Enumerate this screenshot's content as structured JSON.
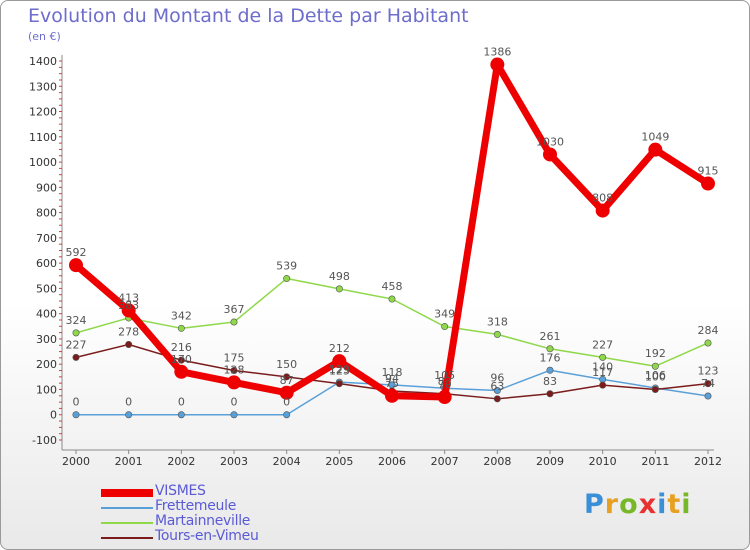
{
  "chart_data": {
    "type": "line",
    "title": "Evolution du Montant de la Dette par Habitant",
    "subtitle": "(en €)",
    "categories": [
      "2000",
      "2001",
      "2002",
      "2003",
      "2004",
      "2005",
      "2006",
      "2007",
      "2008",
      "2009",
      "2010",
      "2011",
      "2012"
    ],
    "ylim": [
      -100,
      1400
    ],
    "yticks": [
      -100,
      0,
      100,
      200,
      300,
      400,
      500,
      600,
      700,
      800,
      900,
      1000,
      1100,
      1200,
      1300,
      1400
    ],
    "grid": false,
    "legend_position": "bottom-left",
    "series": [
      {
        "name": "VISMES",
        "color": "#ee0000",
        "values": [
          592,
          413,
          170,
          128,
          87,
          212,
          75,
          70,
          1386,
          1030,
          808,
          1049,
          915
        ],
        "labels": [
          "592",
          "413",
          "170",
          "128",
          "87",
          "212",
          "75",
          "70",
          "1386",
          "1030",
          "808",
          "1049",
          "915"
        ]
      },
      {
        "name": "Frettemeule",
        "color": "#5aa0d8",
        "values": [
          0,
          0,
          0,
          0,
          0,
          129,
          118,
          105,
          96,
          176,
          140,
          106,
          74
        ],
        "labels": [
          "0",
          "0",
          "0",
          "0",
          "0",
          "129",
          "118",
          "105",
          "96",
          "176",
          "140",
          "106",
          "74"
        ]
      },
      {
        "name": "Martainneville",
        "color": "#8ed84a",
        "values": [
          324,
          383,
          342,
          367,
          539,
          498,
          458,
          349,
          318,
          261,
          227,
          192,
          284
        ],
        "labels": [
          "324",
          "383",
          "342",
          "367",
          "539",
          "498",
          "458",
          "349",
          "318",
          "261",
          "227",
          "192",
          "284"
        ]
      },
      {
        "name": "Tours-en-Vimeu",
        "color": "#7b1c1c",
        "values": [
          227,
          278,
          216,
          175,
          150,
          123,
          94,
          83,
          63,
          83,
          117,
          100,
          123
        ],
        "labels": [
          "227",
          "278",
          "216",
          "175",
          "150",
          "123",
          "94",
          "83",
          "63",
          "83",
          "117",
          "100",
          "123"
        ]
      }
    ]
  },
  "logo": {
    "letters": [
      "P",
      "r",
      "o",
      "x",
      "i",
      "t",
      "i"
    ],
    "colors": [
      "#3a8fd8",
      "#e8a020",
      "#78b828",
      "#e83030",
      "#3a8fd8",
      "#e8a020",
      "#78b828"
    ]
  }
}
